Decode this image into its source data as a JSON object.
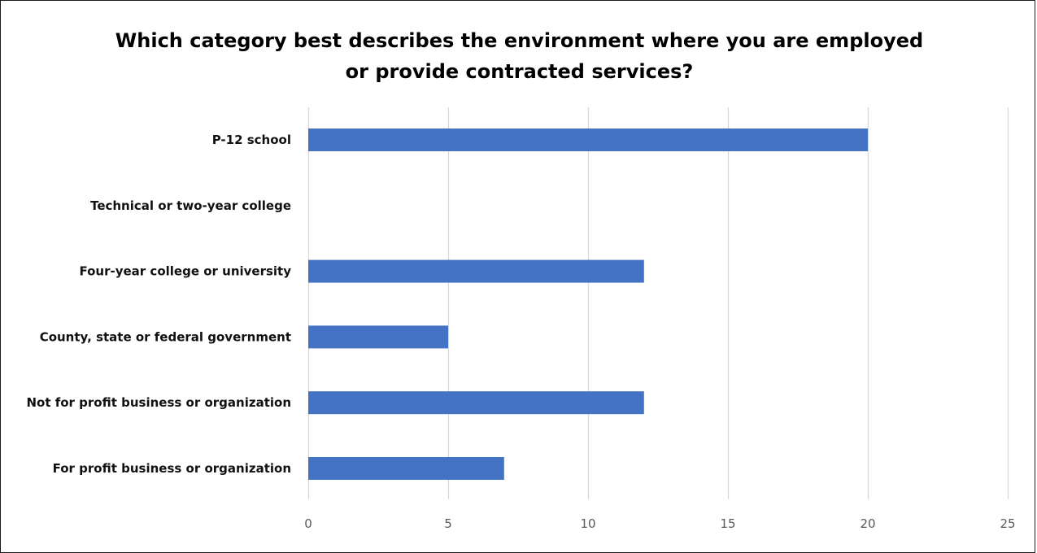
{
  "chart_data": {
    "type": "bar",
    "orientation": "horizontal",
    "title_lines": [
      "Which category best describes the environment where you are employed",
      "or provide contracted services?"
    ],
    "categories": [
      "P-12 school",
      "Technical or two-year college",
      "Four-year college or university",
      "County, state or federal government",
      "Not for profit business or organization",
      "For profit business or organization"
    ],
    "values": [
      20,
      0,
      12,
      5,
      12,
      7
    ],
    "xlim": [
      0,
      25
    ],
    "xticks": [
      0,
      5,
      10,
      15,
      20,
      25
    ],
    "xlabel": "",
    "ylabel": "",
    "grid": "vertical",
    "legend": "none",
    "bar_color": "#4472C4",
    "grid_color": "#D9D9D9"
  }
}
